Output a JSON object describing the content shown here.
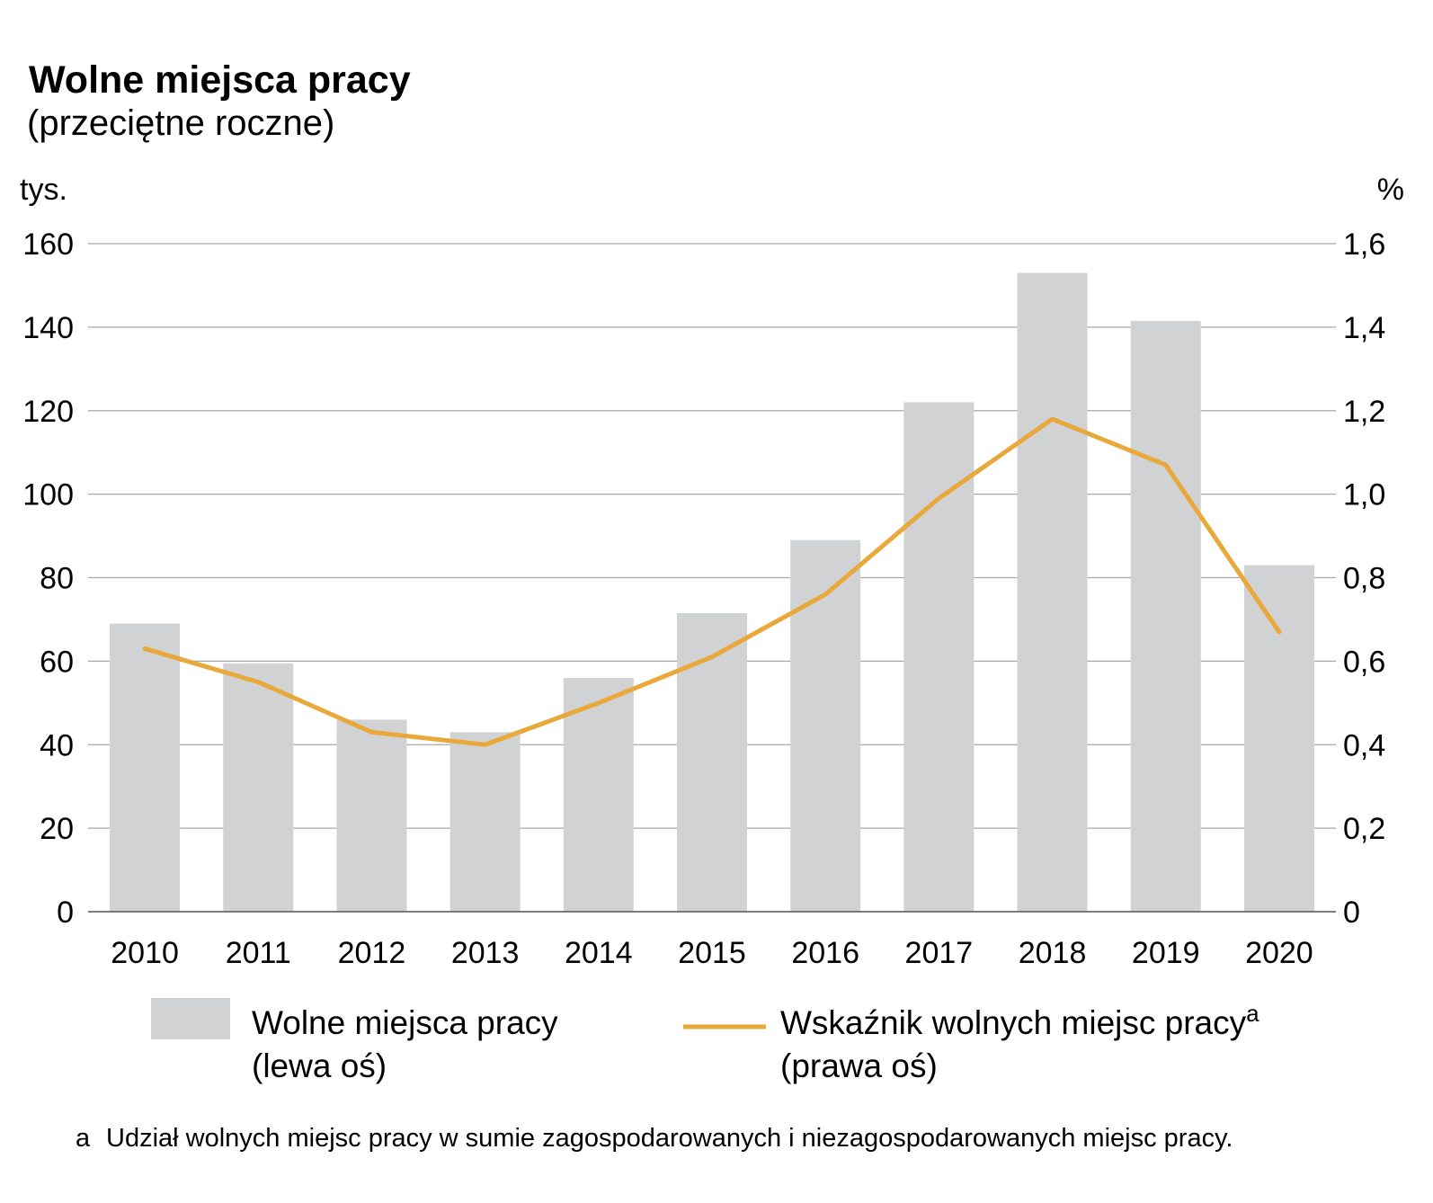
{
  "chart_data": {
    "type": "bar",
    "title": "Wolne miejsca pracy",
    "subtitle": "(przeciętne roczne)",
    "left_axis": {
      "unit": "tys.",
      "range": [
        0,
        160
      ],
      "ticks": [
        "0",
        "20",
        "40",
        "60",
        "80",
        "100",
        "120",
        "140",
        "160"
      ]
    },
    "right_axis": {
      "unit": "%",
      "range": [
        0,
        1.6
      ],
      "ticks": [
        "0",
        "0,2",
        "0,4",
        "0,6",
        "0,8",
        "1,0",
        "1,2",
        "1,4",
        "1,6"
      ]
    },
    "categories": [
      "2010",
      "2011",
      "2012",
      "2013",
      "2014",
      "2015",
      "2016",
      "2017",
      "2018",
      "2019",
      "2020"
    ],
    "series": [
      {
        "type": "bar",
        "axis": "left",
        "color": "#d1d2d4",
        "legend_line1": "Wolne miejsca pracy",
        "legend_line2": "(lewa oś)",
        "values": [
          69,
          59.5,
          46,
          43,
          56,
          71.5,
          89,
          122,
          153,
          141.5,
          83
        ]
      },
      {
        "type": "line",
        "axis": "right",
        "color": "#e8a83a",
        "legend_line1": "Wskaźnik wolnych miejsc pracy",
        "legend_sup": "a",
        "legend_line2": "(prawa oś)",
        "values": [
          0.63,
          0.55,
          0.43,
          0.4,
          0.5,
          0.61,
          0.76,
          0.99,
          1.18,
          1.07,
          0.67
        ]
      }
    ],
    "grid": true,
    "legend_position": "bottom",
    "footnote_marker": "a",
    "footnote": "Udział wolnych miejsc pracy w sumie zagospodarowanych i niezagospodarowanych miejsc pracy."
  }
}
